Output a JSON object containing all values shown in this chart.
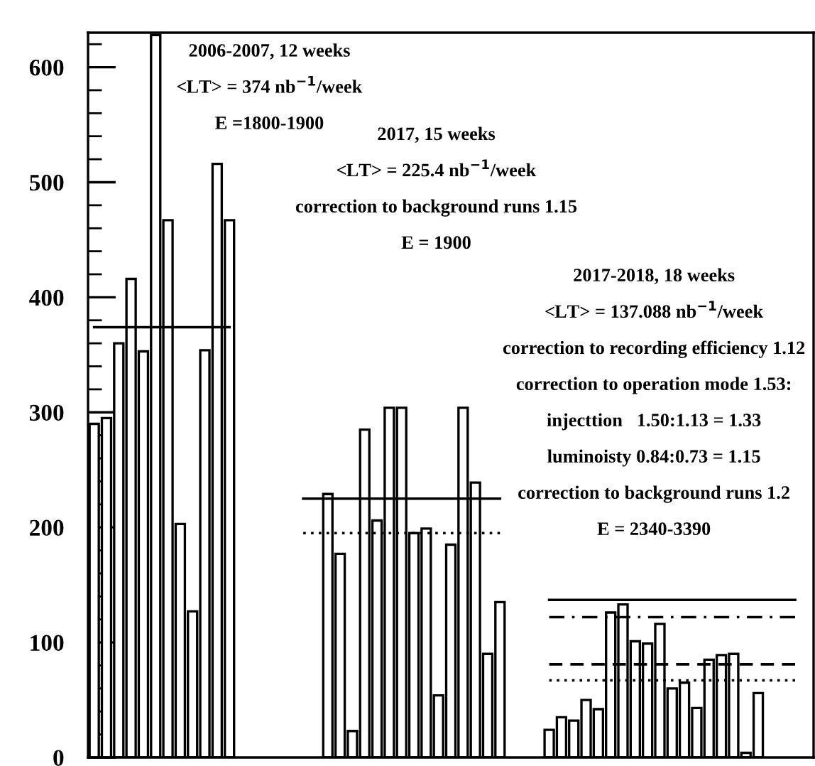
{
  "chart_data": {
    "type": "bar",
    "tick_labels": "y",
    "ylim": [
      0,
      630
    ],
    "yticks": [
      0,
      {
        "value": 20,
        "label": null
      },
      {
        "value": 40,
        "label": null
      },
      {
        "value": 60,
        "label": null
      },
      {
        "value": 80,
        "label": null
      },
      100,
      {
        "value": 120,
        "label": null
      },
      {
        "value": 140,
        "label": null
      },
      {
        "value": 160,
        "label": null
      },
      {
        "value": 180,
        "label": null
      },
      200,
      {
        "value": 220,
        "label": null
      },
      {
        "value": 240,
        "label": null
      },
      {
        "value": 260,
        "label": null
      },
      {
        "value": 280,
        "label": null
      },
      300,
      {
        "value": 320,
        "label": null
      },
      {
        "value": 340,
        "label": null
      },
      {
        "value": 360,
        "label": null
      },
      {
        "value": 380,
        "label": null
      },
      400,
      {
        "value": 420,
        "label": null
      },
      {
        "value": 440,
        "label": null
      },
      {
        "value": 460,
        "label": null
      },
      {
        "value": 480,
        "label": null
      },
      500,
      {
        "value": 520,
        "label": null
      },
      {
        "value": 540,
        "label": null
      },
      {
        "value": 560,
        "label": null
      },
      {
        "value": 580,
        "label": null
      },
      600,
      {
        "value": 620,
        "label": null
      }
    ],
    "grid": false,
    "categories": [
      null,
      null,
      null,
      null,
      null,
      null,
      null,
      null,
      null,
      null,
      null,
      null,
      null,
      null,
      null,
      null,
      null,
      null,
      null,
      null,
      null,
      null,
      null,
      null,
      null,
      null,
      null,
      null,
      null,
      null,
      null,
      null,
      null,
      null,
      null,
      null,
      null,
      null,
      null,
      null,
      null,
      null,
      null,
      null,
      null,
      null,
      null,
      null,
      null,
      null,
      null,
      null,
      null,
      null,
      null,
      null,
      null,
      null,
      null
    ],
    "series": [
      {
        "color": "#ffffff",
        "values": [
          290,
          295,
          360,
          416,
          353,
          628,
          467,
          203,
          127,
          354,
          516,
          467,
          null,
          null,
          null,
          null,
          null,
          null,
          null,
          229,
          177,
          23,
          285,
          206,
          304,
          304,
          195,
          199,
          54,
          185,
          304,
          239,
          90,
          135,
          null,
          null,
          null,
          24,
          35,
          32,
          50,
          42,
          126,
          133,
          101,
          99,
          116,
          60,
          65,
          43,
          85,
          89,
          90,
          4,
          56,
          null,
          null,
          null,
          null
        ]
      },
      {
        "type": "line",
        "color": "#000000",
        "line_style": "solid",
        "values": [
          374,
          374,
          374,
          374,
          374,
          374,
          374,
          374,
          374,
          374,
          374,
          374,
          null,
          null,
          null,
          null,
          null,
          null,
          null,
          null,
          null,
          null,
          null,
          null,
          null,
          null,
          null,
          null,
          null,
          null,
          null,
          null,
          null,
          null,
          null,
          null,
          null,
          null,
          null,
          null,
          null,
          null,
          null,
          null,
          null,
          null,
          null,
          null,
          null,
          null,
          null,
          null,
          null,
          null,
          null,
          null,
          null,
          null,
          null
        ]
      },
      {
        "type": "line",
        "color": "#000000",
        "line_style": "solid",
        "values": [
          null,
          null,
          null,
          null,
          null,
          null,
          null,
          null,
          null,
          null,
          null,
          null,
          null,
          null,
          null,
          null,
          null,
          225,
          225,
          225,
          225,
          225,
          225,
          225,
          225,
          225,
          225,
          225,
          225,
          225,
          225,
          225,
          225,
          225,
          null,
          null,
          null,
          null,
          null,
          null,
          null,
          null,
          null,
          null,
          null,
          null,
          null,
          null,
          null,
          null,
          null,
          null,
          null,
          null,
          null,
          null,
          null,
          null,
          null
        ]
      },
      {
        "type": "line",
        "color": "#000000",
        "line_style": "dotted",
        "values": [
          null,
          null,
          null,
          null,
          null,
          null,
          null,
          null,
          null,
          null,
          null,
          null,
          null,
          null,
          null,
          null,
          null,
          195,
          195,
          195,
          195,
          195,
          195,
          195,
          195,
          195,
          195,
          195,
          195,
          195,
          195,
          195,
          195,
          195,
          null,
          null,
          null,
          null,
          null,
          null,
          null,
          null,
          null,
          null,
          null,
          null,
          null,
          null,
          null,
          null,
          null,
          null,
          null,
          null,
          null,
          null,
          null,
          null,
          null
        ]
      },
      {
        "type": "line",
        "color": "#000000",
        "line_style": "solid",
        "values": [
          null,
          null,
          null,
          null,
          null,
          null,
          null,
          null,
          null,
          null,
          null,
          null,
          null,
          null,
          null,
          null,
          null,
          null,
          null,
          null,
          null,
          null,
          null,
          null,
          null,
          null,
          null,
          null,
          null,
          null,
          null,
          null,
          null,
          null,
          null,
          null,
          null,
          137,
          137,
          137,
          137,
          137,
          137,
          137,
          137,
          137,
          137,
          137,
          137,
          137,
          137,
          137,
          137,
          137,
          137,
          137,
          137,
          137,
          null
        ]
      },
      {
        "type": "line",
        "color": "#000000",
        "line_style": "dashdot",
        "values": [
          null,
          null,
          null,
          null,
          null,
          null,
          null,
          null,
          null,
          null,
          null,
          null,
          null,
          null,
          null,
          null,
          null,
          null,
          null,
          null,
          null,
          null,
          null,
          null,
          null,
          null,
          null,
          null,
          null,
          null,
          null,
          null,
          null,
          null,
          null,
          null,
          null,
          122,
          122,
          122,
          122,
          122,
          122,
          122,
          122,
          122,
          122,
          122,
          122,
          122,
          122,
          122,
          122,
          122,
          122,
          122,
          122,
          122,
          null
        ]
      },
      {
        "type": "line",
        "color": "#000000",
        "line_style": "dashed",
        "values": [
          null,
          null,
          null,
          null,
          null,
          null,
          null,
          null,
          null,
          null,
          null,
          null,
          null,
          null,
          null,
          null,
          null,
          null,
          null,
          null,
          null,
          null,
          null,
          null,
          null,
          null,
          null,
          null,
          null,
          null,
          null,
          null,
          null,
          null,
          null,
          null,
          null,
          81,
          81,
          81,
          81,
          81,
          81,
          81,
          81,
          81,
          81,
          81,
          81,
          81,
          81,
          81,
          81,
          81,
          81,
          81,
          81,
          81,
          null
        ]
      },
      {
        "type": "line",
        "color": "#000000",
        "line_style": "dotted",
        "values": [
          null,
          null,
          null,
          null,
          null,
          null,
          null,
          null,
          null,
          null,
          null,
          null,
          null,
          null,
          null,
          null,
          null,
          null,
          null,
          null,
          null,
          null,
          null,
          null,
          null,
          null,
          null,
          null,
          null,
          null,
          null,
          null,
          null,
          null,
          null,
          null,
          null,
          67,
          67,
          67,
          67,
          67,
          67,
          67,
          67,
          67,
          67,
          67,
          67,
          67,
          67,
          67,
          67,
          67,
          67,
          67,
          67,
          67,
          null
        ]
      }
    ],
    "annotations": [
      "2006-2007, 12 weeks",
      "<LT> = 374 nb$^{−1}$/week",
      "E =1800-1900",
      "2017, 15 weeks",
      "<LT> = 225.4 nb$^{−1}$/week",
      "correction to background runs 1.15",
      "E = 1900",
      "2017-2018, 18 weeks",
      "<LT> = 137.088 nb$^{−1}$/week",
      "correction to recording efficiency 1.12",
      "correction to operation mode 1.53:",
      "injecttion   1.50:1.13 = 1.33",
      "luminoisty 0.84:0.73 = 1.15",
      "correction to background runs 1.2",
      "E = 2340-3390"
    ]
  }
}
